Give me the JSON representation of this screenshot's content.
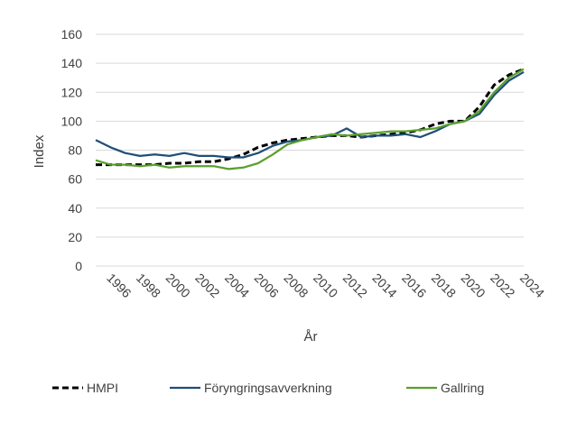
{
  "chart_data": {
    "type": "line",
    "title": "",
    "xlabel": "År",
    "ylabel": "Index",
    "ylim": [
      0,
      160
    ],
    "yticks": [
      0,
      20,
      40,
      60,
      80,
      100,
      120,
      140,
      160
    ],
    "xlim": [
      1996,
      2024
    ],
    "xticks": [
      1996,
      1998,
      2000,
      2002,
      2004,
      2006,
      2008,
      2010,
      2012,
      2014,
      2016,
      2018,
      2020,
      2022,
      2024
    ],
    "grid": "horizontal",
    "legend_position": "bottom",
    "x": [
      1995,
      1996,
      1997,
      1998,
      1999,
      2000,
      2001,
      2002,
      2003,
      2004,
      2005,
      2006,
      2007,
      2008,
      2009,
      2010,
      2011,
      2012,
      2013,
      2014,
      2015,
      2016,
      2017,
      2018,
      2019,
      2020,
      2021,
      2022,
      2023,
      2024
    ],
    "series": [
      {
        "name": "HMPI",
        "color": "#000000",
        "dash": "dashed",
        "values": [
          70,
          70,
          70,
          70,
          70,
          71,
          71,
          72,
          72,
          74,
          77,
          82,
          85,
          87,
          88,
          89,
          90,
          90,
          89,
          90,
          91,
          92,
          94,
          98,
          100,
          100,
          110,
          125,
          132,
          136
        ]
      },
      {
        "name": "Föryngringsavverkning",
        "color": "#1f4e79",
        "dash": "solid",
        "values": [
          87,
          82,
          78,
          76,
          77,
          76,
          78,
          76,
          76,
          75,
          75,
          78,
          83,
          86,
          87,
          89,
          90,
          95,
          89,
          90,
          90,
          91,
          89,
          93,
          98,
          100,
          105,
          118,
          128,
          134
        ]
      },
      {
        "name": "Gallring",
        "color": "#5aa02c",
        "dash": "solid",
        "values": [
          73,
          70,
          70,
          69,
          70,
          68,
          69,
          69,
          69,
          67,
          68,
          71,
          77,
          84,
          87,
          89,
          91,
          90,
          91,
          92,
          93,
          93,
          94,
          95,
          98,
          100,
          107,
          120,
          130,
          136
        ]
      }
    ]
  }
}
